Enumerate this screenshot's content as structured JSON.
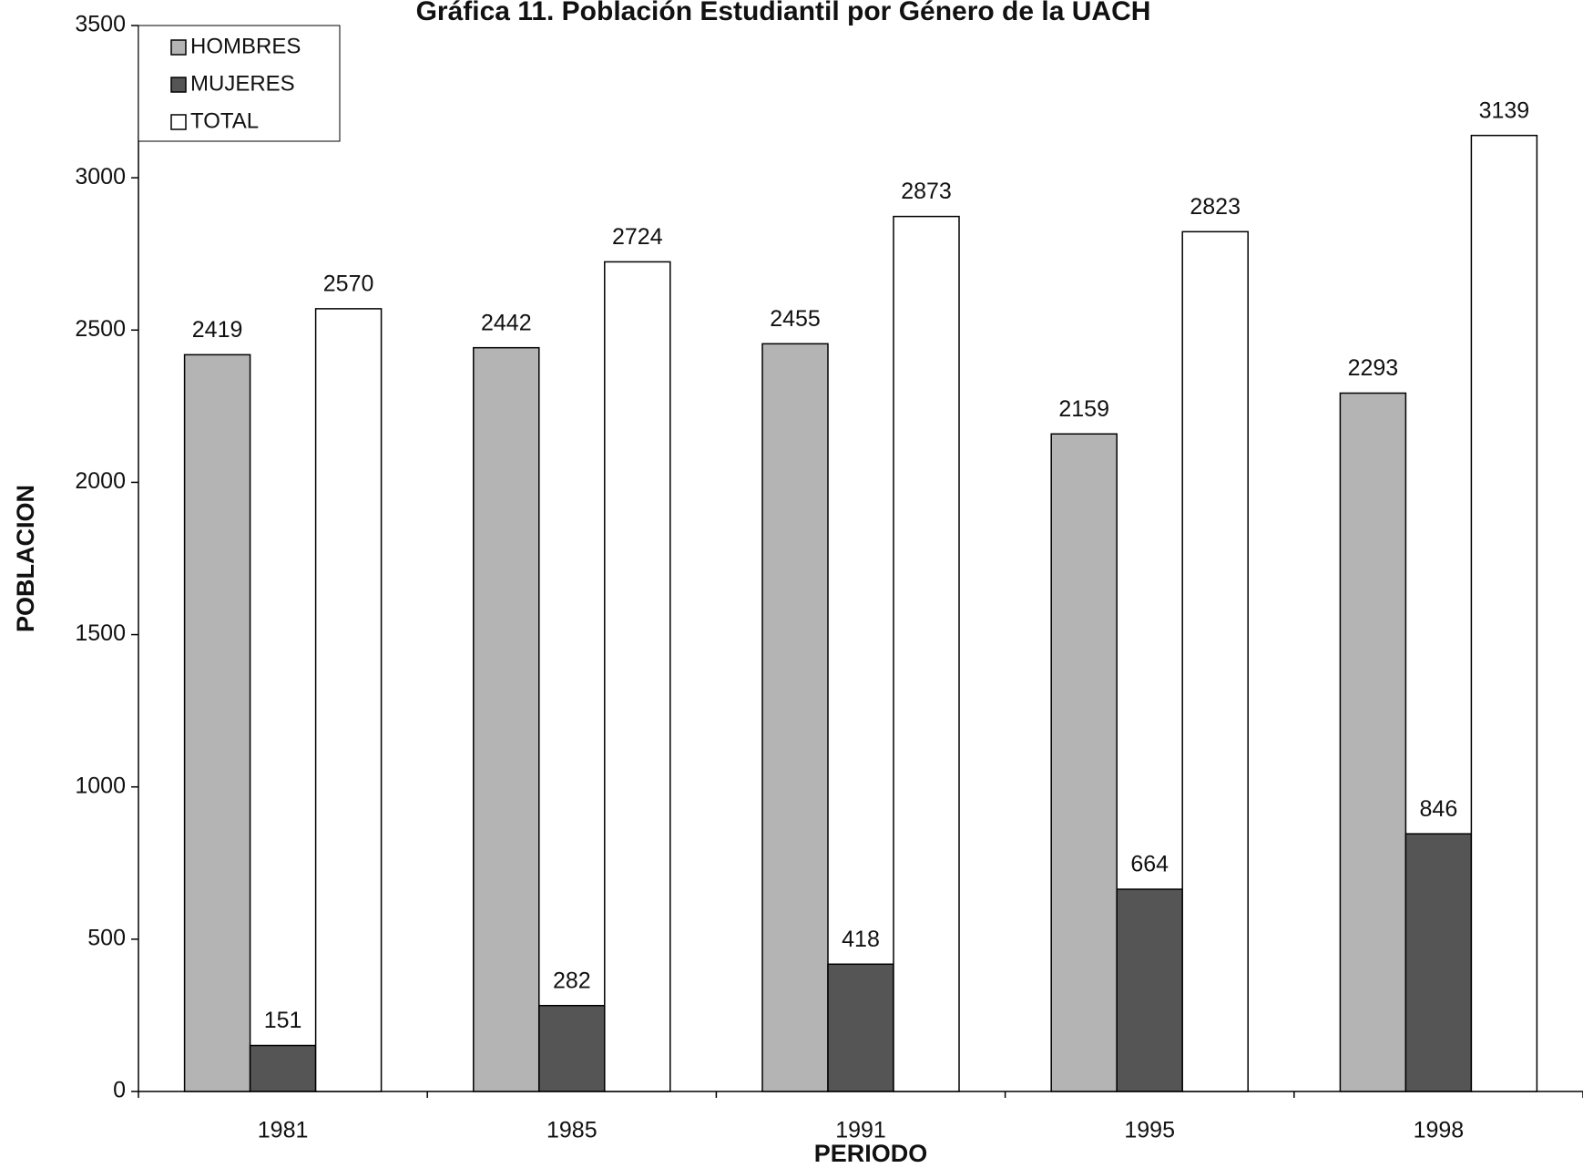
{
  "chart_data": {
    "type": "bar",
    "title": "Gráfica 11. Población Estudiantil por Género  de la UACH",
    "x_label": "PERIODO",
    "y_label": "POBLACION",
    "categories": [
      "1981",
      "1985",
      "1991",
      "1995",
      "1998"
    ],
    "series": [
      {
        "name": "HOMBRES",
        "color": "#b4b4b4",
        "values": [
          2419,
          2442,
          2455,
          2159,
          2293
        ]
      },
      {
        "name": "MUJERES",
        "color": "#555555",
        "values": [
          151,
          282,
          418,
          664,
          846
        ]
      },
      {
        "name": "TOTAL",
        "color": "#ffffff",
        "values": [
          2570,
          2724,
          2873,
          2823,
          3139
        ]
      }
    ],
    "ylim": [
      0,
      3500
    ],
    "yticks": [
      0,
      500,
      1000,
      1500,
      2000,
      2500,
      3000,
      3500
    ],
    "grid": false,
    "legend": "upper left"
  }
}
